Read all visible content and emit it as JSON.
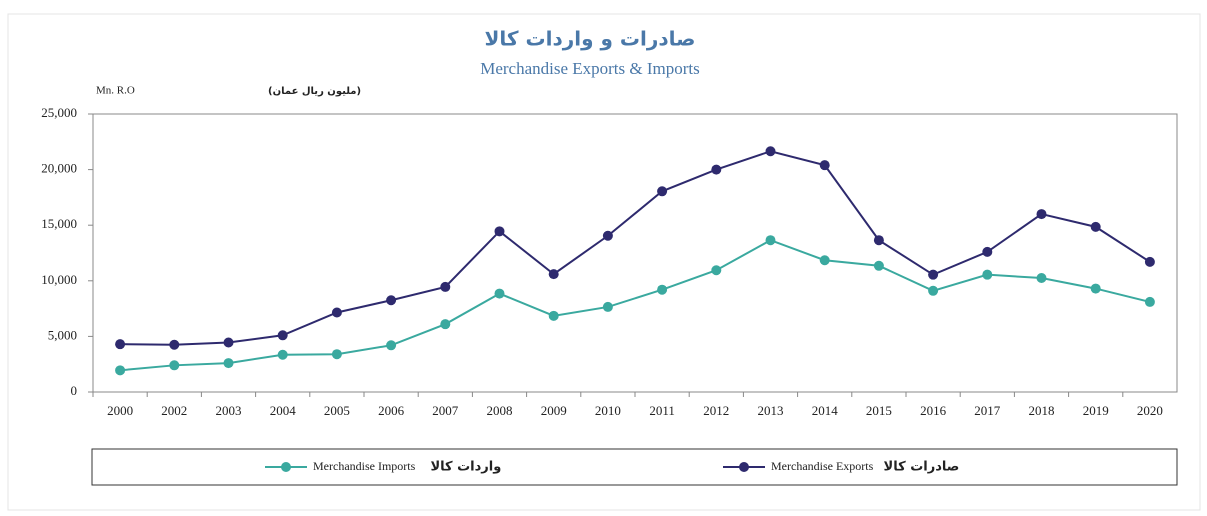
{
  "chart_data": {
    "type": "line",
    "title": "صادرات و واردات كالا",
    "subtitle": "Merchandise Exports & Imports",
    "y_unit": "Mn. R.O",
    "y_unit_ar": "(مليون ريال عمان)",
    "categories": [
      "2000",
      "2002",
      "2003",
      "2004",
      "2005",
      "2006",
      "2007",
      "2008",
      "2009",
      "2010",
      "2011",
      "2012",
      "2013",
      "2014",
      "2015",
      "2016",
      "2017",
      "2018",
      "2019",
      "2020"
    ],
    "series": [
      {
        "name": "Merchandise Imports",
        "name_ar": "واردات كالا",
        "color": "#3aa99f",
        "values": [
          1950,
          2400,
          2600,
          3350,
          3400,
          4200,
          6100,
          8850,
          6850,
          7650,
          9200,
          10950,
          13650,
          11850,
          11350,
          9100,
          10550,
          10250,
          9300,
          8100
        ]
      },
      {
        "name": "Merchandise Exports",
        "name_ar": "صادرات كالا",
        "color": "#2e2a6e",
        "values": [
          4300,
          4250,
          4450,
          5100,
          7150,
          8250,
          9450,
          14450,
          10600,
          14050,
          18050,
          20000,
          21650,
          20400,
          13650,
          10550,
          12600,
          16000,
          14850,
          11700
        ]
      }
    ],
    "ylim": [
      0,
      25000
    ],
    "yticks": [
      0,
      {
        "value": 5000,
        "label": "5,000"
      },
      {
        "value": 10000,
        "label": "10,000"
      },
      {
        "value": 15000,
        "label": "15,000"
      },
      {
        "value": 20000,
        "label": "20,000"
      },
      {
        "value": 25000,
        "label": "25,000"
      }
    ],
    "grid": false,
    "legend": "bottom"
  }
}
